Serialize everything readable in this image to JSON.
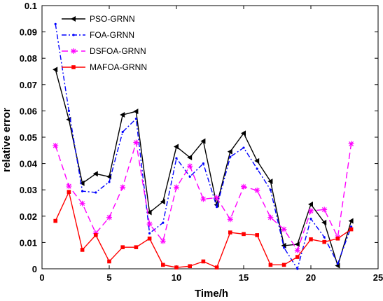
{
  "chart_data": {
    "type": "line",
    "title": "",
    "xlabel": "Time/h",
    "ylabel": "relative error",
    "xlim": [
      0,
      25
    ],
    "ylim": [
      0,
      0.1
    ],
    "xticks": [
      0,
      5,
      10,
      15,
      20,
      25
    ],
    "yticks": [
      0,
      0.01,
      0.02,
      0.03,
      0.04,
      0.05,
      0.06,
      0.07,
      0.08,
      0.09,
      0.1
    ],
    "xtick_labels": [
      "0",
      "5",
      "10",
      "15",
      "20",
      "25"
    ],
    "ytick_labels": [
      "0",
      "0.01",
      "0.02",
      "0.03",
      "0.04",
      "0.05",
      "0.06",
      "0.07",
      "0.08",
      "0.09",
      "0.1"
    ],
    "grid": false,
    "legend_position": "top-left",
    "x": [
      1,
      2,
      3,
      4,
      5,
      6,
      7,
      8,
      9,
      10,
      11,
      12,
      13,
      14,
      15,
      16,
      17,
      18,
      19,
      20,
      21,
      22,
      23
    ],
    "series": [
      {
        "name": "PSO-GRNN",
        "color": "#000000",
        "dash": "",
        "marker": "triangle-left",
        "values": [
          0.0757,
          0.0567,
          0.0325,
          0.0361,
          0.035,
          0.0585,
          0.0598,
          0.0214,
          0.0255,
          0.0464,
          0.0423,
          0.0485,
          0.0243,
          0.0445,
          0.0515,
          0.041,
          0.0332,
          0.0088,
          0.0093,
          0.0245,
          0.0176,
          0.0012,
          0.0182
        ]
      },
      {
        "name": "FOA-GRNN",
        "color": "#0000ff",
        "dash": "7,3,2,3",
        "marker": "dot",
        "values": [
          0.093,
          0.06,
          0.0295,
          0.029,
          0.033,
          0.052,
          0.057,
          0.0135,
          0.0175,
          0.042,
          0.035,
          0.04,
          0.0235,
          0.0425,
          0.046,
          0.038,
          0.03,
          0.008,
          0.0,
          0.019,
          0.012,
          0.002,
          0.016
        ]
      },
      {
        "name": "DSFOA-GRNN",
        "color": "#ff00ff",
        "dash": "9,5",
        "marker": "star",
        "values": [
          0.0468,
          0.0314,
          0.0248,
          0.0135,
          0.0195,
          0.031,
          0.048,
          0.017,
          0.0105,
          0.031,
          0.039,
          0.0265,
          0.027,
          0.0188,
          0.0312,
          0.0298,
          0.0195,
          0.015,
          0.007,
          0.022,
          0.0225,
          0.012,
          0.0475
        ]
      },
      {
        "name": "MAFOA-GRNN",
        "color": "#ff0000",
        "dash": "",
        "marker": "square",
        "values": [
          0.0182,
          0.0292,
          0.0072,
          0.0128,
          0.0028,
          0.0082,
          0.0082,
          0.0115,
          0.0015,
          0.0005,
          0.001,
          0.0028,
          0.0005,
          0.0138,
          0.0132,
          0.0128,
          0.0015,
          0.0015,
          0.0045,
          0.0112,
          0.0102,
          0.0115,
          0.015
        ]
      }
    ]
  }
}
